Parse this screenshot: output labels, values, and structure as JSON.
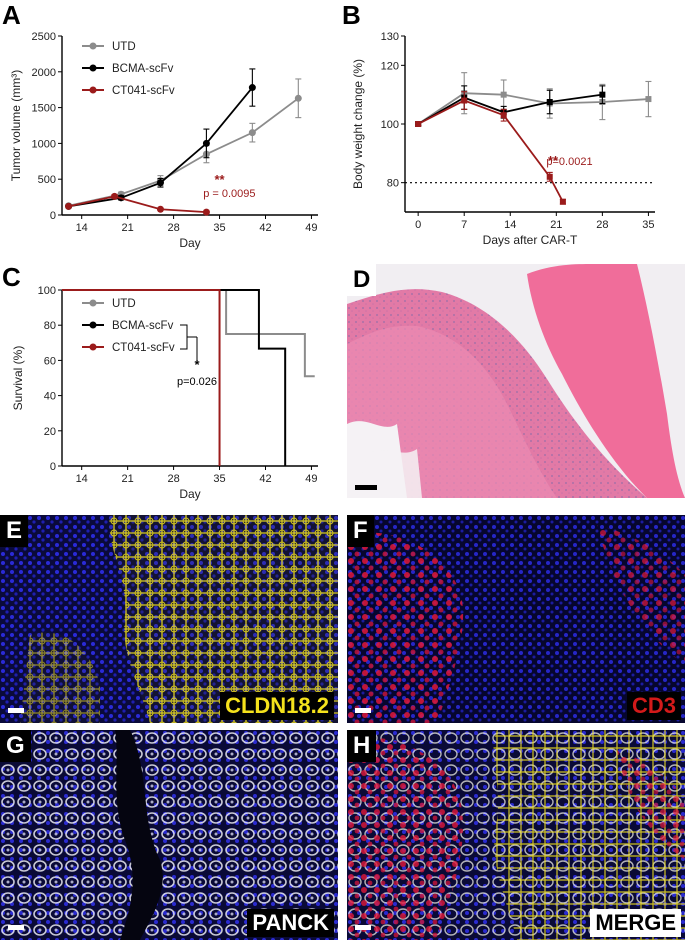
{
  "panels": {
    "A": {
      "letter": "A",
      "chart_data": {
        "type": "line",
        "xlabel": "Day",
        "ylabel": "Tumor volume (mm³)",
        "xticks": [
          14,
          21,
          28,
          35,
          42,
          49
        ],
        "yticks": [
          0,
          500,
          1000,
          1500,
          2000,
          2500
        ],
        "xlim": [
          11,
          50
        ],
        "ylim": [
          0,
          2500
        ],
        "legend_position": "top-left",
        "series": [
          {
            "name": "UTD",
            "color": "#8c8c8c",
            "x": [
              12,
              20,
              26,
              33,
              40,
              47
            ],
            "y": [
              130,
              290,
              480,
              850,
              1150,
              1630
            ],
            "err": [
              20,
              30,
              70,
              120,
              130,
              270
            ]
          },
          {
            "name": "BCMA-scFv",
            "color": "#000000",
            "x": [
              12,
              20,
              26,
              33,
              40
            ],
            "y": [
              120,
              240,
              450,
              1000,
              1780
            ],
            "err": [
              20,
              30,
              60,
              200,
              260
            ]
          },
          {
            "name": "CT041-scFv",
            "color": "#9b1b1b",
            "x": [
              12,
              19,
              26,
              33
            ],
            "y": [
              120,
              260,
              80,
              40
            ],
            "err": [
              15,
              25,
              15,
              10
            ]
          }
        ],
        "annotations": [
          {
            "text": "**",
            "x": 35,
            "y": 430,
            "color": "#9b1b1b"
          },
          {
            "text": "p = 0.0095",
            "x": 36.5,
            "y": 250,
            "color": "#9b1b1b"
          }
        ]
      }
    },
    "B": {
      "letter": "B",
      "chart_data": {
        "type": "line",
        "xlabel": "Days after CAR-T",
        "ylabel": "Body weight change (%)",
        "xticks": [
          0,
          7,
          14,
          21,
          28,
          35
        ],
        "yticks": [
          80,
          100,
          120,
          130
        ],
        "xlim": [
          -2,
          36
        ],
        "ylim": [
          70,
          130
        ],
        "reference_line": 80,
        "series": [
          {
            "name": "UTD",
            "color": "#8c8c8c",
            "x": [
              0,
              7,
              13,
              20,
              28,
              35
            ],
            "y": [
              100,
              110.5,
              110,
              107,
              107.5,
              108.5
            ],
            "err": [
              0.5,
              7,
              5,
              5,
              6,
              6
            ]
          },
          {
            "name": "BCMA-scFv",
            "color": "#000000",
            "x": [
              0,
              7,
              13,
              20,
              28
            ],
            "y": [
              100,
              109,
              104,
              107.5,
              110
            ],
            "err": [
              0.5,
              4,
              2,
              4,
              3
            ]
          },
          {
            "name": "CT041-scFv",
            "color": "#9b1b1b",
            "x": [
              0,
              7,
              13,
              20,
              22
            ],
            "y": [
              100,
              108,
              103,
              82,
              73.5
            ],
            "err": [
              0.5,
              3,
              2,
              1.5,
              0.8
            ]
          }
        ],
        "annotations": [
          {
            "text": "**",
            "x": 20.5,
            "y": 86,
            "color": "#9b1b1b"
          },
          {
            "text": "p=0.0021",
            "x": 23,
            "y": 86,
            "color": "#9b1b1b"
          }
        ]
      }
    },
    "C": {
      "letter": "C",
      "chart_data": {
        "type": "line",
        "xlabel": "Day",
        "ylabel": "Survival (%)",
        "xticks": [
          14,
          21,
          28,
          35,
          42,
          49
        ],
        "yticks": [
          0,
          20,
          40,
          60,
          80,
          100
        ],
        "xlim": [
          11,
          50
        ],
        "ylim": [
          0,
          100
        ],
        "legend_position": "top-left",
        "series": [
          {
            "name": "UTD",
            "color": "#8c8c8c",
            "steps": [
              [
                11,
                100
              ],
              [
                36,
                100
              ],
              [
                36,
                75
              ],
              [
                48,
                75
              ],
              [
                48,
                51
              ],
              [
                49.5,
                51
              ]
            ]
          },
          {
            "name": "BCMA-scFv",
            "color": "#000000",
            "steps": [
              [
                11,
                100
              ],
              [
                41,
                100
              ],
              [
                41,
                66.7
              ],
              [
                45,
                66.7
              ],
              [
                45,
                0
              ]
            ]
          },
          {
            "name": "CT041-scFv",
            "color": "#9b1b1b",
            "steps": [
              [
                11,
                100
              ],
              [
                35,
                100
              ],
              [
                35,
                0
              ]
            ]
          }
        ],
        "annotations": [
          {
            "text": "*",
            "color": "#000000"
          },
          {
            "text": "p=0.026",
            "color": "#000000"
          }
        ]
      }
    },
    "D": {
      "letter": "D"
    },
    "E": {
      "letter": "E",
      "stain": "CLDN18.2",
      "stain_color": "#f5e21c"
    },
    "F": {
      "letter": "F",
      "stain": "CD3",
      "stain_color": "#d31a1a"
    },
    "G": {
      "letter": "G",
      "stain": "PANCK",
      "stain_color": "#ffffff"
    },
    "H": {
      "letter": "H",
      "stain": "MERGE",
      "stain_color": "#000000"
    }
  }
}
